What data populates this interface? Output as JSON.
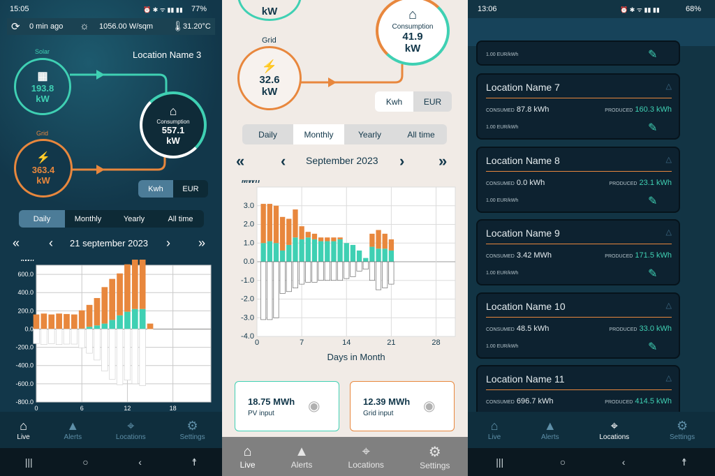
{
  "screen1": {
    "status": {
      "time": "15:05",
      "battery": "77%"
    },
    "info": {
      "updated": "0 min ago",
      "irradiance": "1056.00 W/sqm",
      "temperature": "31.20°C"
    },
    "location": "Location Name 3",
    "solar": {
      "label": "Solar",
      "value": "193.8",
      "unit": "kW"
    },
    "grid": {
      "label": "Grid",
      "value": "363.4",
      "unit": "kW"
    },
    "consumption": {
      "label": "Consumption",
      "value": "557.1",
      "unit": "kW"
    },
    "unit_toggle": [
      "Kwh",
      "EUR"
    ],
    "period_tabs": [
      "Daily",
      "Monthly",
      "Yearly",
      "All time"
    ],
    "date": "21 september 2023",
    "chart_data": {
      "type": "bar",
      "ylabel": "kWh",
      "ylim": [
        -800,
        700
      ],
      "yticks": [
        "600.0",
        "400.0",
        "200.0",
        "0.0",
        "-200.0",
        "-400.0",
        "-600.0",
        "-800.0"
      ],
      "xticks": [
        "0",
        "6",
        "12",
        "18"
      ],
      "xlim": [
        0,
        23
      ],
      "x": [
        0,
        1,
        2,
        3,
        4,
        5,
        6,
        7,
        8,
        9,
        10,
        11,
        12,
        13,
        14
      ],
      "series": [
        {
          "name": "PV input",
          "color": "#3fd0b3",
          "values": [
            0,
            0,
            0,
            0,
            0,
            0,
            5,
            25,
            40,
            60,
            100,
            150,
            190,
            220,
            220
          ]
        },
        {
          "name": "Grid input",
          "color": "#e8873d",
          "values": [
            160,
            170,
            160,
            170,
            165,
            160,
            200,
            240,
            300,
            400,
            450,
            460,
            520,
            560,
            600
          ]
        },
        {
          "name": "Consumption",
          "color": "#ffffff",
          "values": [
            -160,
            -170,
            -160,
            -170,
            -165,
            -165,
            -205,
            -265,
            -340,
            -460,
            -550,
            -610,
            -560,
            -600,
            -620
          ]
        }
      ],
      "extra_bar": {
        "x": 15,
        "pos": 60,
        "neg": -50
      }
    },
    "nav": [
      "Live",
      "Alerts",
      "Locations",
      "Settings"
    ]
  },
  "screen2": {
    "grid": {
      "label": "Grid",
      "value": "32.6",
      "unit": "kW"
    },
    "consumption": {
      "label": "Consumption",
      "value": "41.9",
      "unit": "kW"
    },
    "solar_partial": {
      "unit": "kW"
    },
    "unit_toggle": [
      "Kwh",
      "EUR"
    ],
    "period_tabs": [
      "Daily",
      "Monthly",
      "Yearly",
      "All time"
    ],
    "date": "September 2023",
    "chart_data": {
      "type": "bar",
      "ylabel": "MWh",
      "xlabel": "Days in Month",
      "ylim": [
        -4.0,
        4.0
      ],
      "yticks": [
        "3.0",
        "2.0",
        "1.0",
        "0.0",
        "-1.0",
        "-2.0",
        "-3.0",
        "-4.0"
      ],
      "xticks": [
        "0",
        "7",
        "14",
        "21",
        "28"
      ],
      "xlim": [
        0,
        31
      ],
      "x": [
        1,
        2,
        3,
        4,
        5,
        6,
        7,
        8,
        9,
        10,
        11,
        12,
        13,
        14,
        15,
        16,
        17,
        18,
        19,
        20,
        21
      ],
      "series": [
        {
          "name": "PV input",
          "color": "#3fd0b3",
          "values": [
            1.0,
            1.1,
            1.0,
            0.6,
            0.9,
            1.3,
            1.2,
            1.3,
            1.2,
            1.1,
            1.1,
            1.1,
            1.2,
            1.0,
            0.9,
            0.6,
            0.2,
            0.8,
            0.7,
            0.7,
            0.6
          ]
        },
        {
          "name": "Grid input",
          "color": "#e8873d",
          "values": [
            2.1,
            2.0,
            2.0,
            1.8,
            1.4,
            1.5,
            0.7,
            0.3,
            0.3,
            0.2,
            0.2,
            0.2,
            0.1,
            0.0,
            0.0,
            0.0,
            0.0,
            0.7,
            1.0,
            0.8,
            0.6
          ]
        },
        {
          "name": "Consumption",
          "color": "#ffffff",
          "values": [
            -3.1,
            -3.1,
            -3.0,
            -1.7,
            -1.6,
            -1.4,
            -1.2,
            -1.1,
            -1.1,
            -1.0,
            -1.0,
            -1.0,
            -1.0,
            -0.9,
            -0.8,
            -0.5,
            -0.4,
            -1.0,
            -1.5,
            -1.4,
            -1.2
          ]
        }
      ]
    },
    "summary": [
      {
        "value": "18.75 MWh",
        "label": "PV input",
        "border": "#3fd0b3"
      },
      {
        "value": "12.39 MWh",
        "label": "Grid input",
        "border": "#e8873d"
      }
    ],
    "nav": [
      "Live",
      "Alerts",
      "Locations",
      "Settings"
    ]
  },
  "screen3": {
    "status": {
      "time": "13:06",
      "battery": "68%"
    },
    "partial_price": "1.00 EUR/kWh",
    "locations": [
      {
        "name": "Location Name 7",
        "consumed": "87.8 kWh",
        "produced": "160.3 kWh",
        "price": "1.00 EUR/kWh"
      },
      {
        "name": "Location Name 8",
        "consumed": "0.0 kWh",
        "produced": "23.1 kWh",
        "price": "1.00 EUR/kWh"
      },
      {
        "name": "Location Name 9",
        "consumed": "3.42 MWh",
        "produced": "171.5 kWh",
        "price": "1.00 EUR/kWh"
      },
      {
        "name": "Location Name 10",
        "consumed": "48.5 kWh",
        "produced": "33.0 kWh",
        "price": "1.00 EUR/kWh"
      },
      {
        "name": "Location Name 11",
        "consumed": "696.7 kWh",
        "produced": "414.5 kWh"
      }
    ],
    "consumed_label": "CONSUMED",
    "produced_label": "PRODUCED",
    "nav": [
      "Live",
      "Alerts",
      "Locations",
      "Settings"
    ]
  }
}
